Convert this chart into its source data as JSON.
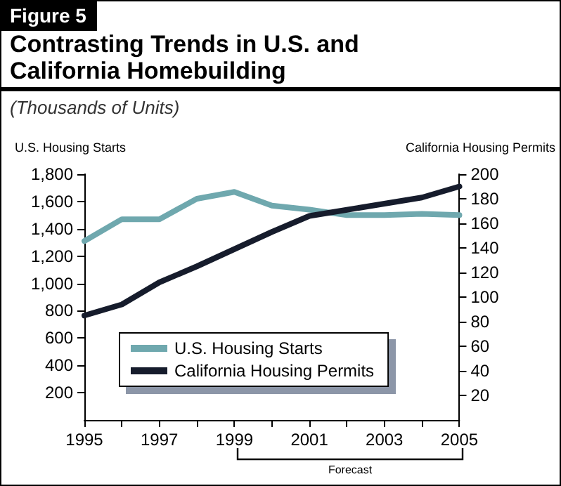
{
  "chart_data": {
    "type": "line",
    "annotations": [
      "Figure 5",
      "Forecast"
    ],
    "title": "Contrasting Trends in U.S. and California Homebuilding",
    "subtitle": "(Thousands of Units)",
    "ylabel": "U.S. Housing Starts",
    "y2label": "California Housing Permits",
    "x": [
      1995,
      1996,
      1997,
      1998,
      1999,
      2000,
      2001,
      2002,
      2003,
      2004,
      2005
    ],
    "series": [
      {
        "name": "U.S. Housing Starts",
        "color": "#6fa8ae",
        "values": [
          1310,
          1470,
          1470,
          1620,
          1670,
          1570,
          1540,
          1500,
          1500,
          1510,
          1500
        ]
      },
      {
        "name": "California Housing Permits",
        "color": "#161c2c",
        "axis": "y2",
        "values": [
          85,
          94,
          112,
          125,
          139,
          153,
          166,
          171,
          176,
          181,
          190
        ]
      }
    ],
    "xlim": [
      1995,
      2005
    ],
    "xticks": [
      1995,
      {
        "value": 1996,
        "label": null
      },
      1997,
      {
        "value": 1998,
        "label": null
      },
      1999,
      {
        "value": 2000,
        "label": null
      },
      2001,
      {
        "value": 2002,
        "label": null
      },
      2003,
      {
        "value": 2004,
        "label": null
      },
      2005
    ],
    "ylim": [
      0,
      1800
    ],
    "yticks": [
      {
        "value": 200,
        "label": "200"
      },
      {
        "value": 400,
        "label": "400"
      },
      {
        "value": 600,
        "label": "600"
      },
      {
        "value": 800,
        "label": "800"
      },
      {
        "value": 1000,
        "label": "1,000"
      },
      {
        "value": 1200,
        "label": "1,200"
      },
      {
        "value": 1400,
        "label": "1,400"
      },
      {
        "value": 1600,
        "label": "1,600"
      },
      {
        "value": 1800,
        "label": "1,800"
      }
    ],
    "y2lim": [
      0,
      200
    ],
    "y2ticks": [
      20,
      40,
      60,
      80,
      100,
      120,
      140,
      160,
      180,
      200
    ],
    "legend": "bottom",
    "grid": false,
    "marker": "none",
    "line_style": "solid"
  }
}
